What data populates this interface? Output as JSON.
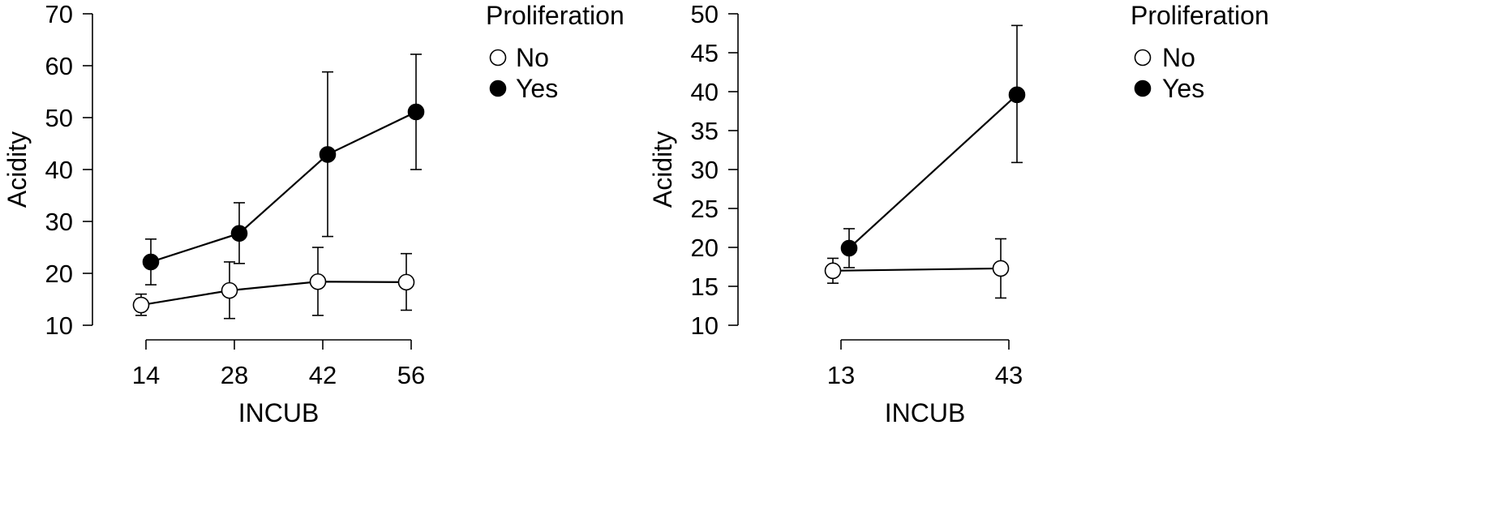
{
  "chart_data": [
    {
      "type": "line",
      "xlabel": "INCUB",
      "ylabel": "Acidity",
      "x": [
        14,
        28,
        42,
        56
      ],
      "xlim": [
        14,
        56
      ],
      "ylim": [
        10,
        70
      ],
      "yticks": [
        10,
        20,
        30,
        40,
        50,
        60,
        70
      ],
      "legend": {
        "title": "Proliferation",
        "placement": "right"
      },
      "grid": false,
      "series": [
        {
          "name": "No",
          "marker": "open-circle",
          "values": [
            13.9,
            16.7,
            18.4,
            18.3
          ],
          "error_low": [
            11.9,
            11.3,
            11.9,
            12.9
          ],
          "error_high": [
            16.0,
            22.2,
            25.0,
            23.8
          ]
        },
        {
          "name": "Yes",
          "marker": "filled-circle",
          "values": [
            22.2,
            27.7,
            42.9,
            51.1
          ],
          "error_low": [
            17.8,
            21.9,
            27.1,
            40.0
          ],
          "error_high": [
            26.6,
            33.6,
            58.8,
            62.2
          ]
        }
      ]
    },
    {
      "type": "line",
      "xlabel": "INCUB",
      "ylabel": "Acidity",
      "x": [
        13,
        43
      ],
      "xlim": [
        13,
        43
      ],
      "ylim": [
        10,
        50
      ],
      "yticks": [
        10,
        15,
        20,
        25,
        30,
        35,
        40,
        45,
        50
      ],
      "legend": {
        "title": "Proliferation",
        "placement": "right"
      },
      "grid": false,
      "series": [
        {
          "name": "No",
          "marker": "open-circle",
          "values": [
            17.0,
            17.3
          ],
          "error_low": [
            15.4,
            13.5
          ],
          "error_high": [
            18.6,
            21.1
          ]
        },
        {
          "name": "Yes",
          "marker": "filled-circle",
          "values": [
            19.9,
            39.6
          ],
          "error_low": [
            17.4,
            30.9
          ],
          "error_high": [
            22.4,
            48.5
          ]
        }
      ]
    }
  ]
}
